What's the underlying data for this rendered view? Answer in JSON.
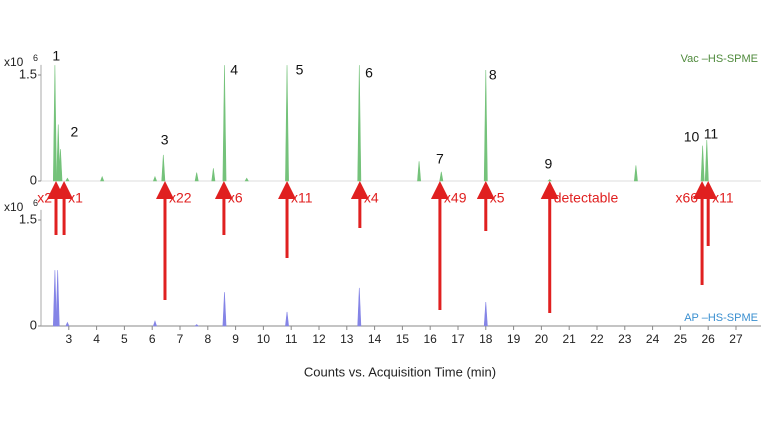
{
  "chart_data": [
    {
      "type": "peaks",
      "panel_label": "Vac –HS-SPME",
      "panel_label_color": "#4f8a3c",
      "y_multiplier": "x10",
      "y_exponent": "6",
      "series": [
        {
          "name": "Vac –HS-SPME",
          "color": "#74c27a",
          "x": [
            2.5,
            2.62,
            2.7,
            2.95,
            4.2,
            6.1,
            6.4,
            7.6,
            8.2,
            8.6,
            9.4,
            10.85,
            13.45,
            15.6,
            16.4,
            18.0,
            20.3,
            23.4,
            25.8,
            25.95
          ],
          "values": [
            1.64,
            0.8,
            0.45,
            0.04,
            0.06,
            0.06,
            0.37,
            0.12,
            0.18,
            1.64,
            0.04,
            1.64,
            1.64,
            0.28,
            0.13,
            1.57,
            0.02,
            0.22,
            0.5,
            0.58
          ]
        }
      ],
      "xlim": [
        2,
        27.9
      ],
      "ylim": [
        0,
        1.7
      ],
      "yticks": [
        0,
        1.5
      ],
      "peak_labels": [
        {
          "text": "1",
          "x": 2.55
        },
        {
          "text": "2",
          "x": 3.2
        },
        {
          "text": "3",
          "x": 6.45
        },
        {
          "text": "4",
          "x": 8.95
        },
        {
          "text": "5",
          "x": 11.3
        },
        {
          "text": "6",
          "x": 13.8
        },
        {
          "text": "7",
          "x": 16.35
        },
        {
          "text": "8",
          "x": 18.25
        },
        {
          "text": "9",
          "x": 20.25
        },
        {
          "text": "10",
          "x": 25.4
        },
        {
          "text": "11",
          "x": 26.1
        }
      ],
      "annotations": [
        {
          "text": "x2",
          "x": 2.54
        },
        {
          "text": "x1",
          "x": 2.83
        },
        {
          "text": "x22",
          "x": 6.46
        },
        {
          "text": "x6",
          "x": 8.58
        },
        {
          "text": "x11",
          "x": 10.85
        },
        {
          "text": "x4",
          "x": 13.47
        },
        {
          "text": "x49",
          "x": 16.35
        },
        {
          "text": "x5",
          "x": 18.0
        },
        {
          "text": "detectable",
          "x": 20.3
        },
        {
          "text": "x66",
          "x": 25.78
        },
        {
          "text": "x11",
          "x": 26.0
        }
      ],
      "annotation_color": "#e02020"
    },
    {
      "type": "peaks",
      "panel_label": "AP –HS-SPME",
      "panel_label_color": "#3a8fd0",
      "y_multiplier": "x10",
      "y_exponent": "6",
      "series": [
        {
          "name": "AP –HS-SPME",
          "color": "#8484e6",
          "x": [
            2.5,
            2.6,
            2.95,
            6.1,
            7.6,
            8.6,
            10.85,
            13.45,
            18.0
          ],
          "values": [
            0.79,
            0.79,
            0.05,
            0.07,
            0.02,
            0.48,
            0.2,
            0.54,
            0.34
          ]
        }
      ],
      "xlim": [
        2,
        27.9
      ],
      "ylim": [
        0,
        1.7
      ],
      "yticks": [
        0,
        1.5
      ],
      "xticks": [
        3,
        4,
        5,
        6,
        7,
        8,
        9,
        10,
        11,
        12,
        13,
        14,
        15,
        16,
        17,
        18,
        19,
        20,
        21,
        22,
        23,
        24,
        25,
        26,
        27
      ],
      "x_label": "Counts vs. Acquisition Time (min)"
    }
  ]
}
